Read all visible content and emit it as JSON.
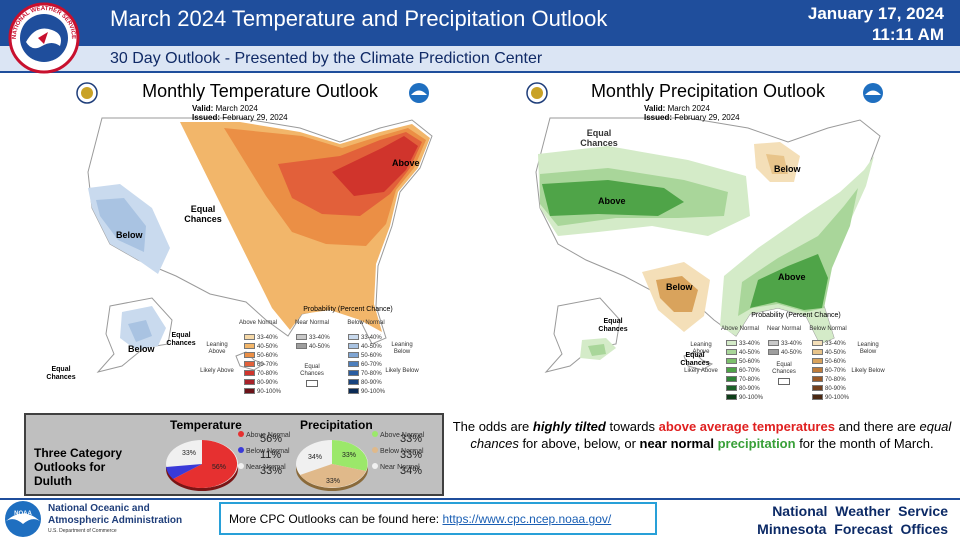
{
  "header": {
    "title": "March 2024 Temperature and Precipitation Outlook",
    "subtitle": "30 Day Outlook - Presented by the Climate Prediction Center",
    "date": "January 17, 2024",
    "time": "11:11 AM",
    "logo_text": "NATIONAL WEATHER SERVICE"
  },
  "temp_map": {
    "title": "Monthly Temperature Outlook",
    "valid_label": "Valid:",
    "valid_value": "March 2024",
    "issued_label": "Issued:",
    "issued_value": "February 29, 2024",
    "labels": {
      "above": "Above",
      "equal_chances_mid": "Equal Chances",
      "below": "Below",
      "below_ak": "Below",
      "equal_chances_ak_1": "Equal Chances",
      "equal_chances_ak_2": "Equal Chances"
    },
    "legend": {
      "title": "Probability (Percent Chance)",
      "col_above": "Above Normal",
      "col_near": "Near Normal",
      "col_below": "Below Normal",
      "leaning_above": "Leaning Above",
      "likely_above": "Likely Above",
      "leaning_below": "Leaning Below",
      "likely_below": "Likely Below",
      "equal_chances": "Equal Chances",
      "bins": [
        "33-40%",
        "40-50%",
        "50-60%",
        "60-70%",
        "70-80%",
        "80-90%",
        "90-100%"
      ],
      "near_bins": [
        "33-40%",
        "40-50%"
      ],
      "above_colors": [
        "#f6d9a8",
        "#f2b66a",
        "#eb8f45",
        "#e2603a",
        "#d0342c",
        "#a8222a",
        "#6b1218"
      ],
      "below_colors": [
        "#c9daee",
        "#a9c3e2",
        "#7fa5d3",
        "#4d7fbd",
        "#2a5da0",
        "#17427d",
        "#0a2a55"
      ],
      "near_colors": [
        "#c8c8c8",
        "#9e9e9e"
      ]
    }
  },
  "precip_map": {
    "title": "Monthly Precipitation Outlook",
    "valid_label": "Valid:",
    "valid_value": "March 2024",
    "issued_label": "Issued:",
    "issued_value": "February 29, 2024",
    "labels": {
      "equal_chances_top": "Equal Chances",
      "above_west": "Above",
      "below_mi": "Below",
      "above_se": "Above",
      "below_tx": "Below",
      "equal_chances_ak_1": "Equal Chances",
      "equal_chances_ak_2": "Equal Chances"
    },
    "legend": {
      "title": "Probability (Percent Chance)",
      "col_above": "Above Normal",
      "col_near": "Near Normal",
      "col_below": "Below Normal",
      "leaning_above": "Leaning Above",
      "likely_above": "Likely Above",
      "leaning_below": "Leaning Below",
      "likely_below": "Likely Below",
      "equal_chances": "Equal Chances",
      "bins": [
        "33-40%",
        "40-50%",
        "50-60%",
        "60-70%",
        "70-80%",
        "80-90%",
        "90-100%"
      ],
      "near_bins": [
        "33-40%",
        "40-50%"
      ],
      "above_colors": [
        "#d4ebc8",
        "#a9d69a",
        "#7dc06d",
        "#4fa448",
        "#2f8437",
        "#1c6129",
        "#0d3d18"
      ],
      "below_colors": [
        "#f4dfb8",
        "#e8c48a",
        "#d9a35c",
        "#bf7c3a",
        "#9b5a28",
        "#73401d",
        "#4a2812"
      ],
      "near_colors": [
        "#c8c8c8",
        "#9e9e9e"
      ]
    }
  },
  "duluth": {
    "label": "Three Category Outlooks for Duluth",
    "temperature": {
      "heading": "Temperature",
      "legend": [
        "Above Normal",
        "Below Normal",
        "Near Normal"
      ],
      "values": [
        "56%",
        "11%",
        "33%"
      ],
      "pie_labels": [
        "56%",
        "33%"
      ],
      "colors": [
        "#e63030",
        "#3a3ad8",
        "#f0f0f0"
      ]
    },
    "precipitation": {
      "heading": "Precipitation",
      "legend": [
        "Above Normal",
        "Below Normal",
        "Near Normal"
      ],
      "values": [
        "33%",
        "33%",
        "34%"
      ],
      "pie_labels": [
        "33%",
        "33%",
        "34%"
      ],
      "colors": [
        "#9be86a",
        "#e0b98a",
        "#f0f0f0"
      ]
    }
  },
  "narrative": {
    "p1": "The odds are ",
    "p2": "highly tilted",
    "p3": " towards ",
    "p4": "above average temperatures",
    "p5": " and there are ",
    "p6": "equal chances",
    "p7": " for above, below, or ",
    "p8": "near normal",
    "p9": " ",
    "p10": "precipitation",
    "p11": " for the month of March."
  },
  "footer": {
    "noaa_name": "National Oceanic and Atmospheric Administration",
    "noaa_dept": "U.S. Department of Commerce",
    "cpc_text": "More CPC Outlooks can be found here: ",
    "cpc_link": "https://www.cpc.ncep.noaa.gov/",
    "nws_line1": "National Weather Service",
    "nws_line2": "Minnesota Forecast Offices"
  },
  "colors": {
    "header_blue": "#1f4e9c",
    "subheader_bg": "#dbe5f4",
    "red_emphasis": "#e02020",
    "green_emphasis": "#38a038",
    "link_box": "#28a0d8"
  }
}
